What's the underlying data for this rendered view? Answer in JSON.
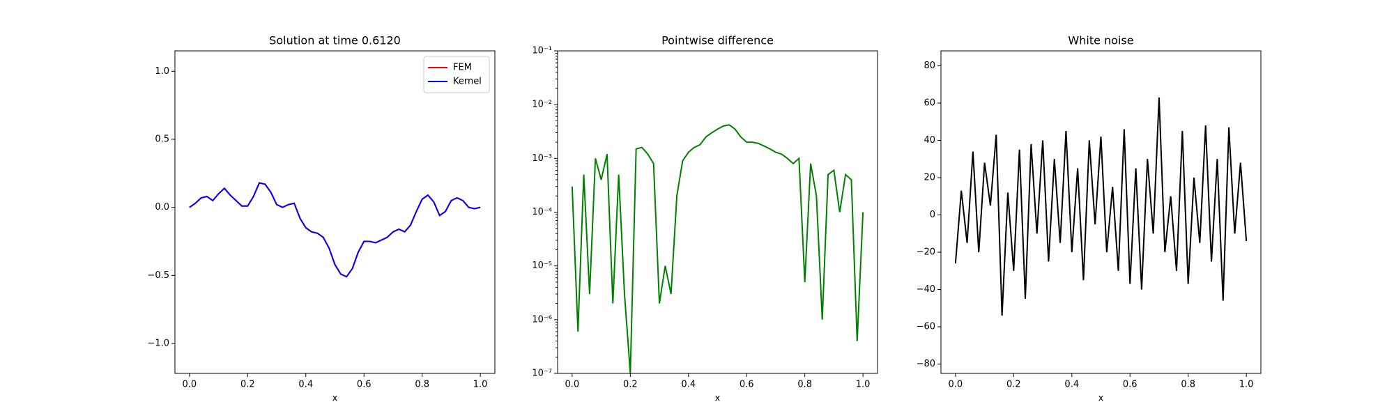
{
  "chart_data": [
    {
      "type": "line",
      "title": "Solution at time 0.6120",
      "xlabel": "x",
      "x": [
        0,
        0.02,
        0.04,
        0.06,
        0.08,
        0.1,
        0.12,
        0.14,
        0.16,
        0.18,
        0.2,
        0.22,
        0.24,
        0.26,
        0.28,
        0.3,
        0.32,
        0.34,
        0.36,
        0.38,
        0.4,
        0.42,
        0.44,
        0.46,
        0.48,
        0.5,
        0.52,
        0.54,
        0.56,
        0.58,
        0.6,
        0.62,
        0.64,
        0.66,
        0.68,
        0.7,
        0.72,
        0.74,
        0.76,
        0.78,
        0.8,
        0.82,
        0.84,
        0.86,
        0.88,
        0.9,
        0.92,
        0.94,
        0.96,
        0.98,
        1
      ],
      "series": [
        {
          "name": "FEM",
          "color": "red",
          "values": [
            0,
            0.03,
            0.07,
            0.08,
            0.05,
            0.1,
            0.14,
            0.09,
            0.05,
            0.01,
            0.01,
            0.08,
            0.18,
            0.17,
            0.11,
            0.02,
            0,
            0.02,
            0.03,
            -0.08,
            -0.15,
            -0.18,
            -0.19,
            -0.22,
            -0.3,
            -0.42,
            -0.49,
            -0.51,
            -0.45,
            -0.33,
            -0.25,
            -0.25,
            -0.26,
            -0.24,
            -0.22,
            -0.18,
            -0.16,
            -0.18,
            -0.13,
            -0.03,
            0.06,
            0.09,
            0.04,
            -0.06,
            -0.03,
            0.05,
            0.07,
            0.05,
            0,
            -0.01,
            0
          ]
        },
        {
          "name": "Kernel",
          "color": "blue",
          "values": [
            0,
            0.03,
            0.07,
            0.08,
            0.05,
            0.1,
            0.14,
            0.09,
            0.05,
            0.01,
            0.01,
            0.08,
            0.18,
            0.17,
            0.11,
            0.02,
            0,
            0.02,
            0.03,
            -0.08,
            -0.15,
            -0.18,
            -0.19,
            -0.22,
            -0.3,
            -0.42,
            -0.49,
            -0.51,
            -0.45,
            -0.33,
            -0.25,
            -0.25,
            -0.26,
            -0.24,
            -0.22,
            -0.18,
            -0.16,
            -0.18,
            -0.13,
            -0.03,
            0.06,
            0.09,
            0.04,
            -0.06,
            -0.03,
            0.05,
            0.07,
            0.05,
            0,
            -0.01,
            0
          ]
        }
      ],
      "xlim": [
        -0.05,
        1.05
      ],
      "xticks": [
        {
          "value": 0,
          "label": "0.0"
        },
        0.2,
        0.4,
        0.6,
        0.8,
        {
          "value": 1,
          "label": "1.0"
        }
      ],
      "ylim": [
        -1.22,
        1.15
      ],
      "yticks": [
        {
          "value": -1,
          "label": "−1.0"
        },
        {
          "value": -0.5,
          "label": "−0.5"
        },
        {
          "value": 0,
          "label": "0.0"
        },
        0.5,
        {
          "value": 1,
          "label": "1.0"
        }
      ],
      "legend": "upper right"
    },
    {
      "type": "line",
      "title": "Pointwise difference",
      "xlabel": "x",
      "yscale": "log",
      "x": [
        0,
        0.02,
        0.04,
        0.06,
        0.08,
        0.1,
        0.12,
        0.14,
        0.16,
        0.18,
        0.2,
        0.22,
        0.24,
        0.26,
        0.28,
        0.3,
        0.32,
        0.34,
        0.36,
        0.38,
        0.4,
        0.42,
        0.44,
        0.46,
        0.48,
        0.5,
        0.52,
        0.54,
        0.56,
        0.58,
        0.6,
        0.62,
        0.64,
        0.66,
        0.68,
        0.7,
        0.72,
        0.74,
        0.76,
        0.78,
        0.8,
        0.82,
        0.84,
        0.86,
        0.88,
        0.9,
        0.92,
        0.94,
        0.96,
        0.98,
        1
      ],
      "series": [
        {
          "color": "green",
          "values": [
            0.0003,
            6e-07,
            0.0005,
            3e-06,
            0.001,
            0.0004,
            0.0012,
            2e-06,
            0.0005,
            3e-06,
            1e-07,
            0.0015,
            0.0016,
            0.0012,
            0.0008,
            2e-06,
            1e-05,
            3e-06,
            0.0002,
            0.0009,
            0.0013,
            0.0016,
            0.0018,
            0.0025,
            0.003,
            0.0035,
            0.004,
            0.0042,
            0.0035,
            0.0025,
            0.002,
            0.002,
            0.0019,
            0.0017,
            0.0015,
            0.0013,
            0.0012,
            0.001,
            0.0008,
            0.001,
            5e-06,
            0.0008,
            0.0002,
            1e-06,
            0.0005,
            0.0006,
            0.0001,
            0.0005,
            0.0004,
            4e-07,
            0.0001
          ]
        }
      ],
      "xlim": [
        -0.05,
        1.05
      ],
      "xticks": [
        {
          "value": 0,
          "label": "0.0"
        },
        0.2,
        0.4,
        0.6,
        0.8,
        {
          "value": 1,
          "label": "1.0"
        }
      ],
      "ylim": [
        1e-07,
        0.1
      ],
      "yticks": [
        {
          "value": 1e-07,
          "label": "10⁻⁷"
        },
        {
          "value": 1e-06,
          "label": "10⁻⁶"
        },
        {
          "value": 1e-05,
          "label": "10⁻⁵"
        },
        {
          "value": 0.0001,
          "label": "10⁻⁴"
        },
        {
          "value": 0.001,
          "label": "10⁻³"
        },
        {
          "value": 0.01,
          "label": "10⁻²"
        },
        {
          "value": 0.1,
          "label": "10⁻¹"
        }
      ]
    },
    {
      "type": "line",
      "title": "White noise",
      "xlabel": "x",
      "x": [
        0,
        0.02,
        0.04,
        0.06,
        0.08,
        0.1,
        0.12,
        0.14,
        0.16,
        0.18,
        0.2,
        0.22,
        0.24,
        0.26,
        0.28,
        0.3,
        0.32,
        0.34,
        0.36,
        0.38,
        0.4,
        0.42,
        0.44,
        0.46,
        0.48,
        0.5,
        0.52,
        0.54,
        0.56,
        0.58,
        0.6,
        0.62,
        0.64,
        0.66,
        0.68,
        0.7,
        0.72,
        0.74,
        0.76,
        0.78,
        0.8,
        0.82,
        0.84,
        0.86,
        0.88,
        0.9,
        0.92,
        0.94,
        0.96,
        0.98,
        1
      ],
      "series": [
        {
          "color": "black",
          "values": [
            -26,
            13,
            -15,
            34,
            -20,
            28,
            5,
            43,
            -54,
            12,
            -30,
            35,
            -45,
            38,
            -10,
            40,
            -25,
            30,
            -15,
            45,
            -20,
            25,
            -35,
            40,
            -5,
            42,
            -20,
            15,
            -30,
            46,
            -37,
            25,
            -40,
            30,
            -10,
            63,
            -20,
            10,
            -30,
            45,
            -37,
            20,
            -15,
            48,
            -25,
            30,
            -46,
            47,
            -10,
            28,
            -14
          ]
        }
      ],
      "xlim": [
        -0.05,
        1.05
      ],
      "xticks": [
        {
          "value": 0,
          "label": "0.0"
        },
        0.2,
        0.4,
        0.6,
        0.8,
        {
          "value": 1,
          "label": "1.0"
        }
      ],
      "ylim": [
        -85,
        88
      ],
      "yticks": [
        {
          "value": -80,
          "label": "−80"
        },
        {
          "value": -60,
          "label": "−60"
        },
        {
          "value": -40,
          "label": "−40"
        },
        {
          "value": -20,
          "label": "−20"
        },
        0,
        20,
        40,
        60,
        80
      ]
    }
  ]
}
